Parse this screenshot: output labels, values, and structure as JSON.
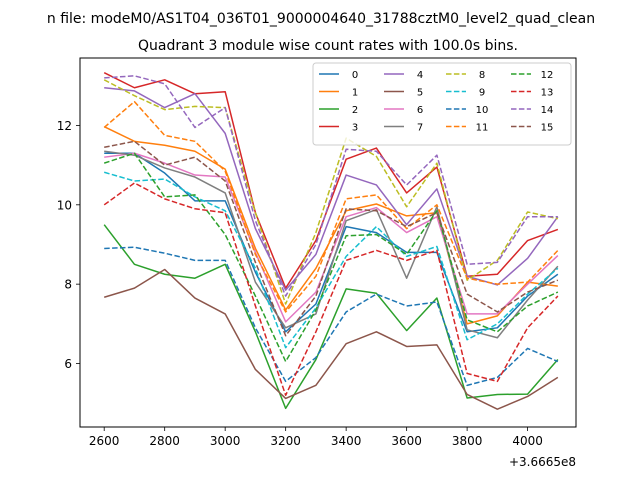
{
  "chart_data": {
    "type": "line",
    "suptitle": "n file: modeM0/AS1T04_036T01_9000004640_31788cztM0_level2_quad_clean",
    "title": "Quadrant 3 module wise count rates with 100.0s bins.",
    "x_offset_label": "+3.6665e8",
    "xlim": [
      2520,
      4160
    ],
    "ylim": [
      4.4,
      13.7
    ],
    "x_ticks": [
      2600,
      2800,
      3000,
      3200,
      3400,
      3600,
      3800,
      4000
    ],
    "y_ticks": [
      6,
      8,
      10,
      12
    ],
    "legend": {
      "placement": "top-right",
      "columns": 4
    },
    "x": [
      2600,
      2700,
      2800,
      2900,
      3000,
      3100,
      3200,
      3300,
      3400,
      3500,
      3600,
      3700,
      3800,
      3900,
      4000,
      4100
    ],
    "series": [
      {
        "name": "0",
        "color": "#1f77b4",
        "dashed": false,
        "values": [
          11.3,
          11.3,
          10.8,
          10.1,
          10.1,
          8.3,
          6.8,
          7.5,
          9.45,
          9.3,
          8.8,
          8.8,
          6.8,
          6.9,
          7.7,
          8.25
        ]
      },
      {
        "name": "1",
        "color": "#ff7f0e",
        "dashed": false,
        "values": [
          11.97,
          11.6,
          11.5,
          11.35,
          10.9,
          8.9,
          7.35,
          8.4,
          9.85,
          10.02,
          9.72,
          9.8,
          7.0,
          7.2,
          8.05,
          7.95
        ]
      },
      {
        "name": "2",
        "color": "#2ca02c",
        "dashed": false,
        "values": [
          9.5,
          8.5,
          8.25,
          8.15,
          8.5,
          6.8,
          4.87,
          6.1,
          7.88,
          7.77,
          6.83,
          7.65,
          5.13,
          5.22,
          5.23,
          6.1
        ]
      },
      {
        "name": "3",
        "color": "#d62728",
        "dashed": false,
        "values": [
          13.33,
          12.95,
          13.15,
          12.8,
          12.85,
          9.8,
          7.9,
          9.1,
          11.15,
          11.43,
          10.3,
          10.95,
          8.2,
          8.25,
          9.1,
          9.38
        ]
      },
      {
        "name": "4",
        "color": "#9467bd",
        "dashed": false,
        "values": [
          12.95,
          12.87,
          12.45,
          12.8,
          11.8,
          9.4,
          7.85,
          8.75,
          10.75,
          10.5,
          9.5,
          10.4,
          8.2,
          7.98,
          8.65,
          9.7
        ]
      },
      {
        "name": "5",
        "color": "#8c564b",
        "dashed": false,
        "values": [
          7.67,
          7.9,
          8.37,
          7.65,
          7.25,
          5.85,
          5.12,
          5.45,
          6.5,
          6.8,
          6.43,
          6.47,
          5.22,
          4.85,
          5.17,
          5.65
        ]
      },
      {
        "name": "6",
        "color": "#e377c2",
        "dashed": false,
        "values": [
          11.2,
          11.3,
          11.05,
          10.75,
          10.7,
          8.8,
          7.05,
          7.8,
          9.7,
          9.93,
          9.3,
          9.7,
          7.25,
          7.25,
          8.0,
          8.72
        ]
      },
      {
        "name": "7",
        "color": "#7f7f7f",
        "dashed": false,
        "values": [
          11.35,
          11.25,
          10.93,
          10.7,
          10.3,
          8.05,
          6.9,
          7.25,
          9.6,
          9.88,
          8.15,
          9.95,
          6.85,
          6.65,
          7.6,
          8.45
        ]
      },
      {
        "name": "8",
        "color": "#bcbd22",
        "dashed": true,
        "values": [
          13.15,
          12.75,
          12.4,
          12.48,
          12.45,
          9.8,
          7.5,
          9.3,
          11.68,
          11.22,
          9.95,
          11.05,
          8.1,
          8.6,
          9.82,
          9.65
        ]
      },
      {
        "name": "9",
        "color": "#17becf",
        "dashed": true,
        "values": [
          10.82,
          10.6,
          10.65,
          10.2,
          9.85,
          8.4,
          6.4,
          7.4,
          8.7,
          9.45,
          8.7,
          8.95,
          6.6,
          7.0,
          7.75,
          8.4
        ]
      },
      {
        "name": "10",
        "color": "#1f77b4",
        "dashed": true,
        "values": [
          8.9,
          8.93,
          8.78,
          8.6,
          8.6,
          6.9,
          5.55,
          6.15,
          7.3,
          7.75,
          7.45,
          7.55,
          5.45,
          5.65,
          6.38,
          6.05
        ]
      },
      {
        "name": "11",
        "color": "#ff7f0e",
        "dashed": true,
        "values": [
          11.95,
          12.6,
          11.75,
          11.6,
          10.85,
          8.75,
          7.3,
          8.2,
          10.15,
          10.25,
          9.4,
          10.0,
          8.15,
          8.0,
          8.05,
          8.85
        ]
      },
      {
        "name": "12",
        "color": "#2ca02c",
        "dashed": true,
        "values": [
          11.05,
          11.3,
          10.2,
          10.25,
          9.25,
          7.7,
          6.05,
          7.35,
          9.22,
          9.25,
          8.75,
          9.85,
          7.1,
          6.8,
          7.45,
          7.8
        ]
      },
      {
        "name": "13",
        "color": "#d62728",
        "dashed": true,
        "values": [
          10.0,
          10.55,
          10.15,
          9.9,
          9.8,
          7.45,
          5.2,
          6.8,
          8.6,
          8.85,
          8.6,
          8.85,
          5.75,
          5.55,
          6.9,
          7.7
        ]
      },
      {
        "name": "14",
        "color": "#9467bd",
        "dashed": true,
        "values": [
          13.2,
          13.25,
          13.05,
          11.95,
          12.45,
          9.6,
          7.7,
          9.0,
          11.4,
          11.35,
          10.5,
          11.25,
          8.5,
          8.55,
          9.7,
          9.7
        ]
      },
      {
        "name": "15",
        "color": "#8c564b",
        "dashed": true,
        "values": [
          11.45,
          11.6,
          11.0,
          11.2,
          10.6,
          8.55,
          6.7,
          7.7,
          9.9,
          9.85,
          9.45,
          9.8,
          7.75,
          7.3,
          7.8,
          8.1
        ]
      }
    ]
  }
}
